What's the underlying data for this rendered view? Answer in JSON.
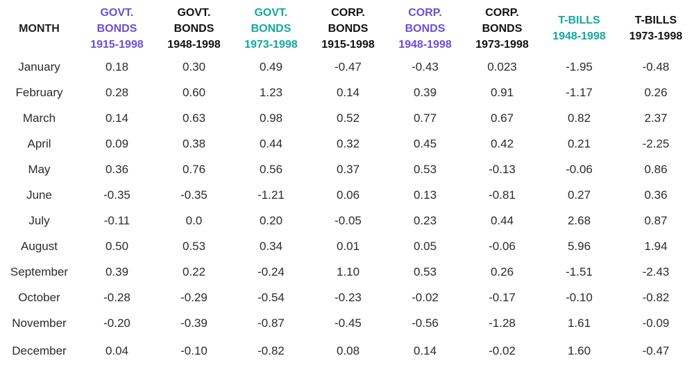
{
  "colors": {
    "purple": "#6a4fd8",
    "teal": "#13a89e",
    "black": "#111111"
  },
  "header_month": "MONTH",
  "columns": [
    {
      "l1": "GOVT.",
      "l2": "BONDS",
      "l3": "1915-1998",
      "color": "#6a4fd8"
    },
    {
      "l1": "GOVT.",
      "l2": "BONDS",
      "l3": "1948-1998",
      "color": "#111111"
    },
    {
      "l1": "GOVT.",
      "l2": "BONDS",
      "l3": "1973-1998",
      "color": "#13a89e"
    },
    {
      "l1": "CORP.",
      "l2": "BONDS",
      "l3": "1915-1998",
      "color": "#111111"
    },
    {
      "l1": "CORP.",
      "l2": "BONDS",
      "l3": "1948-1998",
      "color": "#6a4fd8"
    },
    {
      "l1": "CORP.",
      "l2": "BONDS",
      "l3": "1973-1998",
      "color": "#111111"
    },
    {
      "l1": "T-BILLS",
      "l2": "1948-1998",
      "l3": "",
      "color": "#13a89e"
    },
    {
      "l1": "T-BILLS",
      "l2": "1973-1998",
      "l3": "",
      "color": "#111111"
    }
  ],
  "rows": [
    {
      "month": "January",
      "values": [
        "0.18",
        "0.30",
        "0.49",
        "-0.47",
        "-0.43",
        "0.023",
        "-1.95",
        "-0.48"
      ]
    },
    {
      "month": "February",
      "values": [
        "0.28",
        "0.60",
        "1.23",
        "0.14",
        "0.39",
        "0.91",
        "-1.17",
        "0.26"
      ]
    },
    {
      "month": "March",
      "values": [
        "0.14",
        "0.63",
        "0.98",
        "0.52",
        "0.77",
        "0.67",
        "0.82",
        "2.37"
      ]
    },
    {
      "month": "April",
      "values": [
        "0.09",
        "0.38",
        "0.44",
        "0.32",
        "0.45",
        "0.42",
        "0.21",
        "-2.25"
      ]
    },
    {
      "month": "May",
      "values": [
        "0.36",
        "0.76",
        "0.56",
        "0.37",
        "0.53",
        "-0.13",
        "-0.06",
        "0.86"
      ]
    },
    {
      "month": "June",
      "values": [
        "-0.35",
        "-0.35",
        "-1.21",
        "0.06",
        "0.13",
        "-0.81",
        "0.27",
        "0.36"
      ]
    },
    {
      "month": "July",
      "values": [
        "-0.11",
        "0.0",
        "0.20",
        "-0.05",
        "0.23",
        "0.44",
        "2.68",
        "0.87"
      ]
    },
    {
      "month": "August",
      "values": [
        "0.50",
        "0.53",
        "0.34",
        "0.01",
        "0.05",
        "-0.06",
        "5.96",
        "1.94"
      ]
    },
    {
      "month": "September",
      "values": [
        "0.39",
        "0.22",
        "-0.24",
        "1.10",
        "0.53",
        "0.26",
        "-1.51",
        "-2.43"
      ]
    },
    {
      "month": "October",
      "values": [
        "-0.28",
        "-0.29",
        "-0.54",
        "-0.23",
        "-0.02",
        "-0.17",
        "-0.10",
        "-0.82"
      ]
    },
    {
      "month": "November",
      "values": [
        "-0.20",
        "-0.39",
        "-0.87",
        "-0.45",
        "-0.56",
        "-1.28",
        "1.61",
        "-0.09"
      ]
    },
    {
      "month": "December",
      "values": [
        "0.04",
        "-0.10",
        "-0.82",
        "0.08",
        "0.14",
        "-0.02",
        "1.60",
        "-0.47"
      ]
    }
  ]
}
